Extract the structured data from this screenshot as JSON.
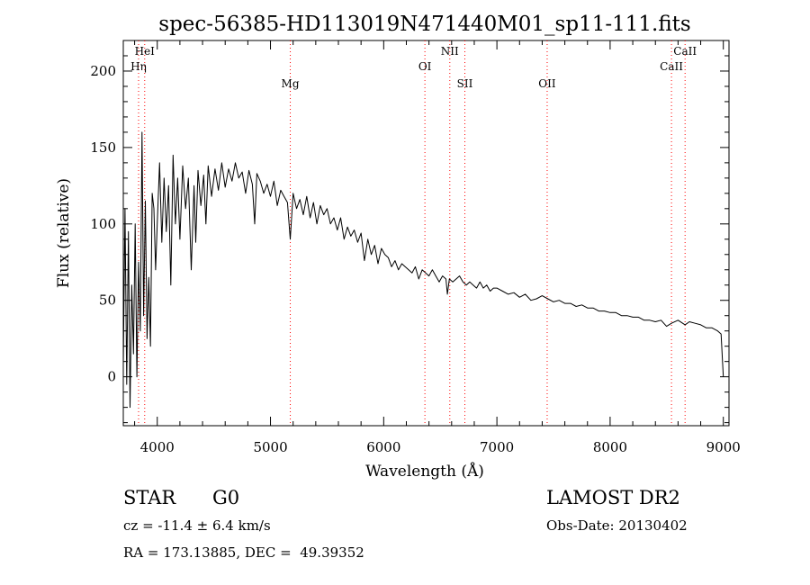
{
  "chart_data": {
    "type": "line",
    "title": "spec-56385-HD113019N471440M01_sp11-111.fits",
    "xlabel": "Wavelength (Å)",
    "ylabel": "Flux (relative)",
    "xlim": [
      3700,
      9050
    ],
    "ylim": [
      -32,
      220
    ],
    "x_ticks": [
      4000,
      5000,
      6000,
      7000,
      8000,
      9000
    ],
    "y_ticks": [
      0,
      50,
      100,
      150,
      200
    ],
    "line_color": "#000000",
    "marker_color": "#ff0000",
    "markers": [
      {
        "label": "HeI",
        "x": 3889,
        "row": 0
      },
      {
        "label": "Hη",
        "x": 3835,
        "row": 1
      },
      {
        "label": "Mg",
        "x": 5175,
        "row": 2
      },
      {
        "label": "OI",
        "x": 6364,
        "row": 1
      },
      {
        "label": "NII",
        "x": 6584,
        "row": 0
      },
      {
        "label": "SII",
        "x": 6717,
        "row": 2
      },
      {
        "label": "OII",
        "x": 7444,
        "row": 2
      },
      {
        "label": "CaII",
        "x": 8542,
        "row": 1
      },
      {
        "label": "CaII",
        "x": 8662,
        "row": 0
      }
    ],
    "series": [
      {
        "x": [
          3700,
          3715,
          3730,
          3745,
          3760,
          3775,
          3790,
          3805,
          3820,
          3835,
          3850,
          3865,
          3880,
          3895,
          3910,
          3925,
          3940,
          3955,
          3970,
          3985,
          4000,
          4020,
          4040,
          4060,
          4080,
          4100,
          4120,
          4140,
          4160,
          4180,
          4200,
          4225,
          4250,
          4275,
          4300,
          4325,
          4340,
          4360,
          4385,
          4410,
          4430,
          4450,
          4480,
          4510,
          4540,
          4570,
          4600,
          4630,
          4660,
          4690,
          4720,
          4750,
          4780,
          4810,
          4840,
          4861,
          4880,
          4910,
          4940,
          4970,
          5000,
          5030,
          5060,
          5090,
          5120,
          5150,
          5175,
          5200,
          5230,
          5260,
          5290,
          5320,
          5350,
          5380,
          5410,
          5440,
          5470,
          5500,
          5530,
          5560,
          5590,
          5620,
          5650,
          5680,
          5710,
          5740,
          5770,
          5800,
          5830,
          5860,
          5890,
          5920,
          5950,
          5980,
          6010,
          6040,
          6070,
          6100,
          6130,
          6160,
          6190,
          6220,
          6250,
          6280,
          6310,
          6340,
          6370,
          6400,
          6430,
          6460,
          6490,
          6520,
          6550,
          6563,
          6580,
          6610,
          6640,
          6670,
          6700,
          6730,
          6760,
          6790,
          6820,
          6850,
          6880,
          6910,
          6940,
          6970,
          7000,
          7050,
          7100,
          7150,
          7200,
          7250,
          7300,
          7350,
          7400,
          7450,
          7500,
          7550,
          7600,
          7650,
          7700,
          7750,
          7800,
          7850,
          7900,
          7950,
          8000,
          8050,
          8100,
          8150,
          8200,
          8250,
          8300,
          8350,
          8400,
          8450,
          8498,
          8542,
          8600,
          8662,
          8700,
          8750,
          8800,
          8850,
          8900,
          8950,
          8980,
          9000
        ],
        "y": [
          8,
          110,
          -5,
          95,
          -20,
          60,
          15,
          100,
          0,
          75,
          30,
          160,
          40,
          115,
          25,
          65,
          20,
          120,
          110,
          70,
          100,
          140,
          88,
          130,
          95,
          125,
          60,
          145,
          100,
          130,
          90,
          138,
          110,
          130,
          70,
          125,
          88,
          135,
          112,
          132,
          100,
          138,
          118,
          136,
          122,
          140,
          124,
          136,
          128,
          140,
          130,
          134,
          120,
          135,
          126,
          100,
          133,
          128,
          120,
          126,
          118,
          128,
          112,
          122,
          118,
          114,
          90,
          120,
          110,
          116,
          106,
          118,
          104,
          114,
          100,
          112,
          106,
          110,
          100,
          104,
          96,
          104,
          90,
          98,
          92,
          96,
          88,
          94,
          76,
          90,
          80,
          86,
          74,
          84,
          80,
          78,
          72,
          76,
          70,
          74,
          72,
          70,
          68,
          72,
          64,
          70,
          68,
          66,
          70,
          66,
          62,
          66,
          64,
          54,
          64,
          62,
          64,
          66,
          62,
          60,
          62,
          60,
          58,
          62,
          58,
          60,
          56,
          58,
          58,
          56,
          54,
          55,
          52,
          54,
          50,
          51,
          53,
          51,
          49,
          50,
          48,
          48,
          46,
          47,
          45,
          45,
          43,
          43,
          42,
          42,
          40,
          40,
          39,
          39,
          37,
          37,
          36,
          37,
          33,
          35,
          37,
          34,
          36,
          35,
          34,
          32,
          32,
          30,
          28,
          0
        ]
      }
    ]
  },
  "info": {
    "object_class": "STAR",
    "subclass": "G0",
    "survey": "LAMOST DR2",
    "redshift_line": "cz = -11.4 ± 6.4 km/s",
    "obs_date": "Obs-Date: 20130402",
    "coords": "RA = 173.13885, DEC =  49.39352"
  }
}
